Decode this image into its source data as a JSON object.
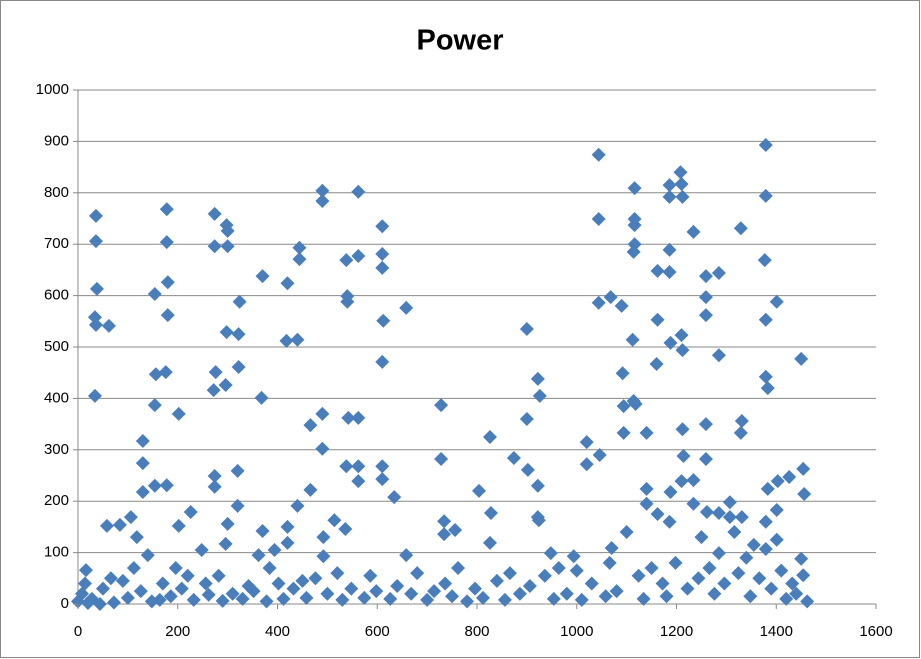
{
  "chart_data": {
    "type": "scatter",
    "title": "Power",
    "color": "#4a7ebb",
    "grid": true,
    "xlim": [
      0,
      1600
    ],
    "xticks": [
      0,
      200,
      400,
      600,
      800,
      1000,
      1200,
      1400,
      1600
    ],
    "ylim": [
      0,
      1000
    ],
    "yticks": [
      0,
      100,
      200,
      300,
      400,
      500,
      600,
      700,
      800,
      900,
      1000
    ],
    "x": [
      36,
      36,
      38,
      34,
      36,
      34,
      62,
      16,
      58,
      84,
      106,
      130,
      130,
      130,
      154,
      154,
      156,
      154,
      176,
      178,
      178,
      180,
      180,
      178,
      202,
      202,
      226,
      274,
      274,
      276,
      272,
      274,
      274,
      298,
      300,
      300,
      298,
      296,
      300,
      296,
      324,
      322,
      322,
      320,
      320,
      368,
      370,
      370,
      420,
      418,
      420,
      420,
      440,
      444,
      444,
      440,
      466,
      466,
      490,
      490,
      490,
      490,
      492,
      492,
      514,
      538,
      540,
      540,
      542,
      536,
      538,
      562,
      562,
      562,
      562,
      562,
      610,
      610,
      610,
      612,
      610,
      610,
      610,
      634,
      658,
      658,
      728,
      728,
      734,
      734,
      756,
      804,
      826,
      828,
      826,
      874,
      900,
      900,
      902,
      922,
      926,
      922,
      922,
      924,
      948,
      994,
      1020,
      1020,
      1044,
      1044,
      1044,
      1046,
      1068,
      1070,
      1090,
      1092,
      1094,
      1094,
      1116,
      1116,
      1116,
      1116,
      1114,
      1112,
      1114,
      1118,
      1140,
      1140,
      1140,
      1162,
      1162,
      1160,
      1162,
      1186,
      1186,
      1186,
      1186,
      1188,
      1188,
      1186,
      1208,
      1210,
      1212,
      1210,
      1212,
      1212,
      1214,
      1210,
      1234,
      1234,
      1234,
      1259,
      1259,
      1259,
      1259,
      1259,
      1261,
      1285,
      1285,
      1285,
      1285,
      1307,
      1307,
      1329,
      1329,
      1331,
      1331,
      1355,
      1379,
      1379,
      1377,
      1379,
      1379,
      1383,
      1379,
      1379,
      1383,
      1401,
      1403,
      1401,
      1401,
      1426,
      1450,
      1454,
      1456,
      1450,
      1454,
      0,
      8,
      14,
      20,
      28,
      44,
      50,
      66,
      72,
      90,
      100,
      112,
      118,
      126,
      140,
      148,
      164,
      170,
      186,
      196,
      208,
      220,
      232,
      248,
      256,
      262,
      282,
      290,
      310,
      330,
      342,
      352,
      362,
      378,
      384,
      394,
      402,
      412,
      432,
      450,
      458,
      476,
      500,
      520,
      530,
      548,
      574,
      586,
      598,
      626,
      640,
      668,
      680,
      700,
      714,
      736,
      750,
      762,
      780,
      796,
      812,
      840,
      856,
      866,
      886,
      906,
      936,
      954,
      964,
      980,
      1000,
      1010,
      1030,
      1058,
      1066,
      1080,
      1100,
      1124,
      1134,
      1150,
      1172,
      1180,
      1198,
      1222,
      1244,
      1250,
      1266,
      1276,
      1296,
      1316,
      1324,
      1340,
      1348,
      1366,
      1390,
      1410,
      1420,
      1432,
      1440,
      1462
    ],
    "values": [
      755,
      706,
      613,
      558,
      543,
      405,
      541,
      66,
      152,
      154,
      169,
      317,
      274,
      218,
      603,
      387,
      447,
      230,
      451,
      768,
      704,
      626,
      562,
      231,
      370,
      152,
      179,
      759,
      696,
      451,
      416,
      249,
      228,
      737,
      726,
      696,
      529,
      426,
      156,
      117,
      588,
      525,
      461,
      259,
      191,
      401,
      638,
      142,
      624,
      512,
      150,
      119,
      514,
      693,
      671,
      191,
      348,
      222,
      804,
      784,
      370,
      302,
      130,
      93,
      163,
      669,
      599,
      588,
      362,
      146,
      268,
      802,
      677,
      362,
      268,
      239,
      735,
      681,
      654,
      551,
      471,
      268,
      243,
      208,
      576,
      95,
      387,
      282,
      161,
      136,
      144,
      220,
      325,
      177,
      119,
      284,
      535,
      360,
      261,
      438,
      405,
      230,
      169,
      163,
      99,
      93,
      315,
      272,
      874,
      749,
      586,
      290,
      597,
      109,
      580,
      449,
      385,
      333,
      809,
      749,
      737,
      700,
      685,
      514,
      395,
      389,
      333,
      224,
      195,
      648,
      553,
      467,
      175,
      815,
      792,
      689,
      646,
      508,
      218,
      160,
      840,
      817,
      792,
      523,
      494,
      340,
      288,
      239,
      724,
      241,
      195,
      638,
      597,
      562,
      350,
      282,
      179,
      644,
      484,
      177,
      99,
      198,
      169,
      731,
      333,
      356,
      169,
      115,
      893,
      794,
      669,
      553,
      442,
      420,
      160,
      107,
      224,
      588,
      239,
      183,
      125,
      247,
      477,
      263,
      214,
      88,
      56,
      5,
      20,
      40,
      2,
      10,
      0,
      30,
      50,
      3,
      45,
      12,
      70,
      130,
      25,
      95,
      5,
      8,
      40,
      15,
      70,
      30,
      55,
      8,
      105,
      40,
      18,
      55,
      6,
      20,
      10,
      35,
      25,
      95,
      5,
      70,
      105,
      40,
      10,
      30,
      45,
      12,
      50,
      20,
      60,
      8,
      30,
      12,
      55,
      25,
      10,
      35,
      20,
      60,
      8,
      25,
      40,
      15,
      70,
      5,
      30,
      12,
      45,
      8,
      60,
      20,
      35,
      55,
      10,
      70,
      20,
      65,
      8,
      40,
      15,
      80,
      25,
      140,
      55,
      10,
      70,
      40,
      15,
      80,
      30,
      50,
      130,
      70,
      20,
      40,
      140,
      60,
      90,
      15,
      50,
      30,
      65,
      10,
      40,
      20,
      5
    ]
  }
}
